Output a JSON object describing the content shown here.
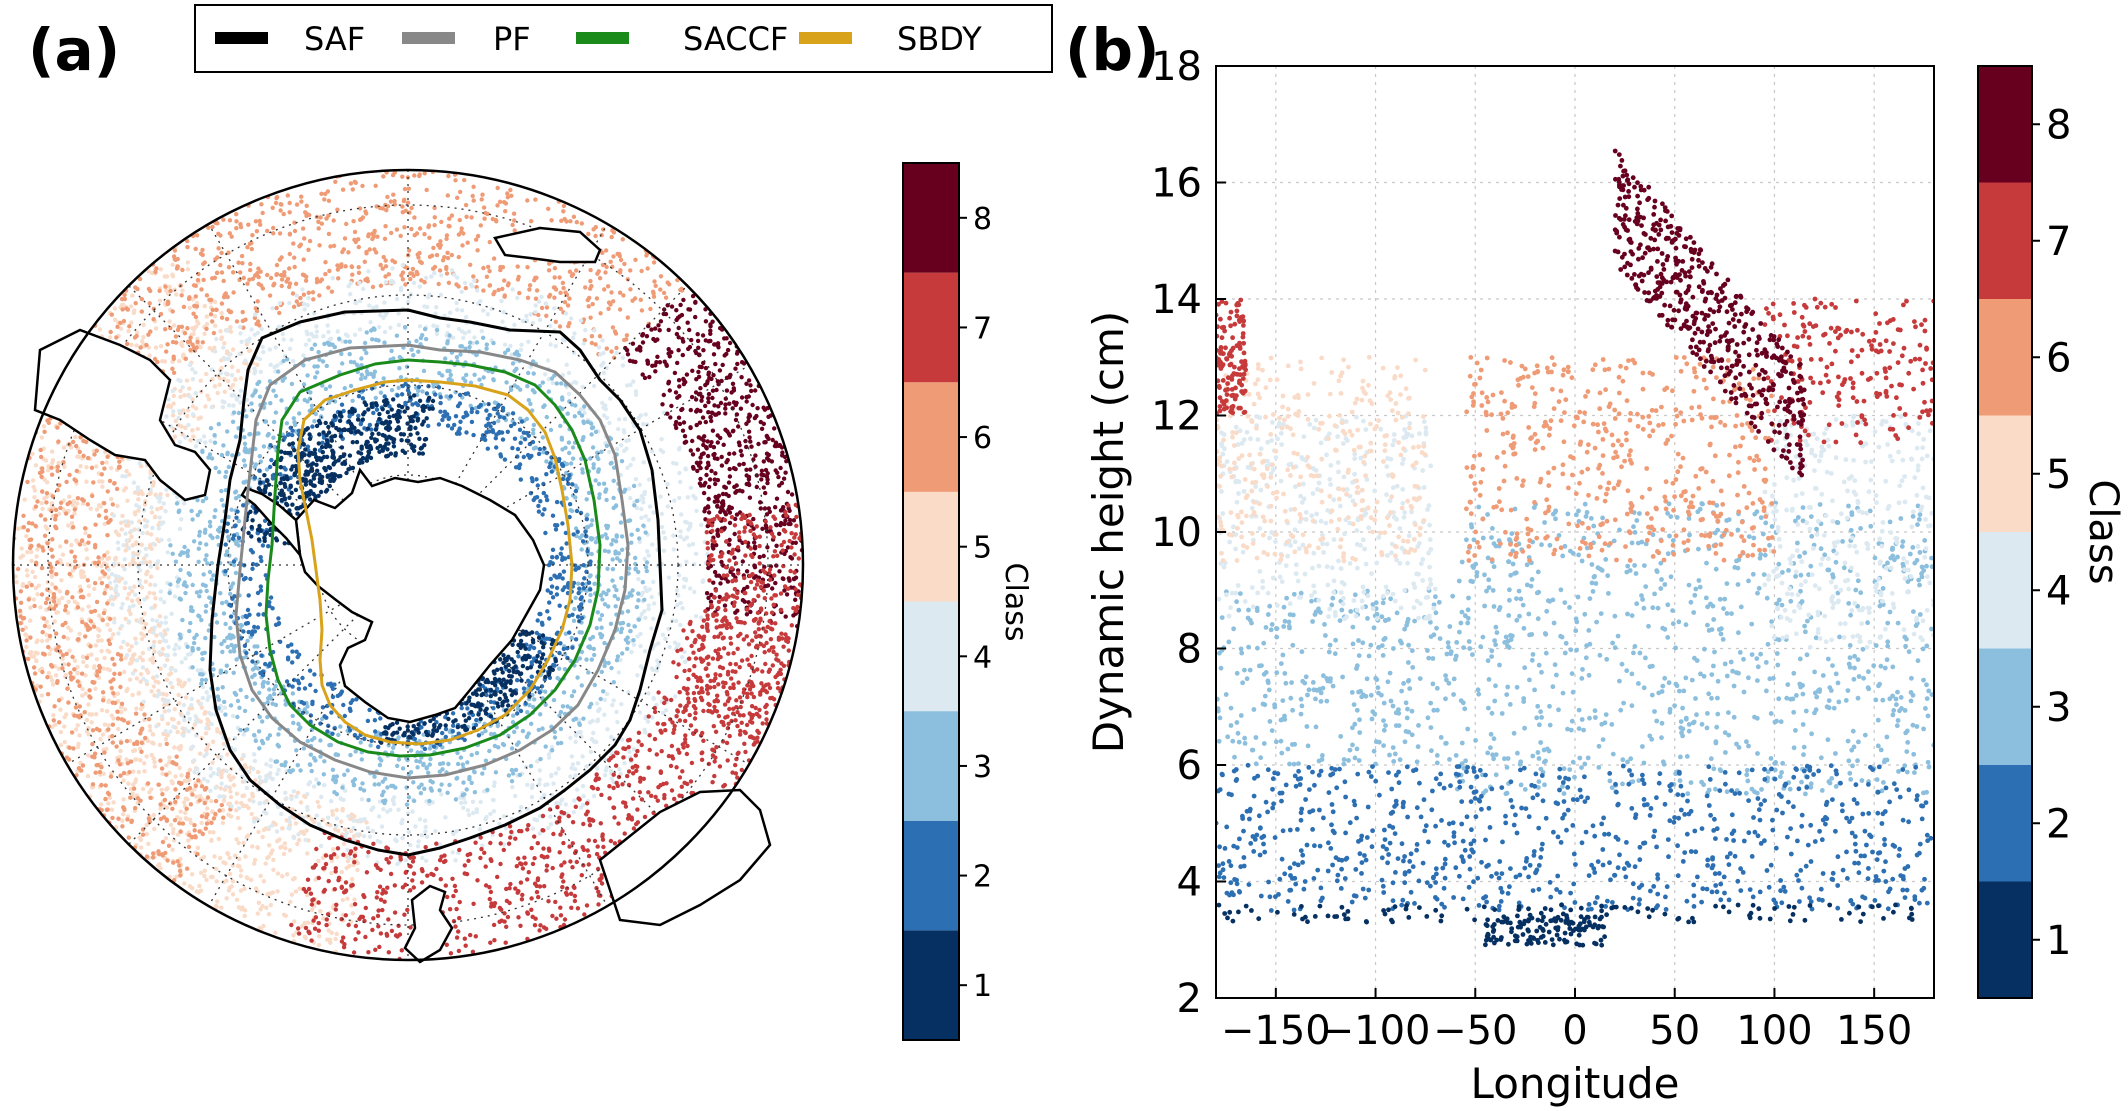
{
  "panel_labels": {
    "a": "(a)",
    "b": "(b)"
  },
  "legend": {
    "entries": [
      {
        "label": "SAF",
        "color": "#000000"
      },
      {
        "label": "PF",
        "color": "#888888"
      },
      {
        "label": "SACCF",
        "color": "#1a8a1a"
      },
      {
        "label": "SBDY",
        "color": "#d9a21b"
      }
    ]
  },
  "class_colors": [
    "#053061",
    "#2c6fb3",
    "#8cbfdd",
    "#dce9f1",
    "#f9dbc8",
    "#ef9b76",
    "#c63a3b",
    "#67001f"
  ],
  "colorbar": {
    "label": "Class",
    "ticks": [
      "1",
      "2",
      "3",
      "4",
      "5",
      "6",
      "7",
      "8"
    ]
  },
  "chart_data": [
    {
      "type": "scatter",
      "title": "",
      "description_panel": "(a)",
      "projection": "south polar stereographic",
      "series": [
        {
          "name": "SAF",
          "kind": "front-line"
        },
        {
          "name": "PF",
          "kind": "front-line"
        },
        {
          "name": "SACCF",
          "kind": "front-line"
        },
        {
          "name": "SBDY",
          "kind": "front-line"
        }
      ],
      "colorbar_label": "Class",
      "classes": [
        1,
        2,
        3,
        4,
        5,
        6,
        7,
        8
      ]
    },
    {
      "type": "scatter",
      "xlabel": "Longitude",
      "ylabel": "Dynamic height (cm)",
      "xlim": [
        -180,
        180
      ],
      "ylim": [
        2,
        18
      ],
      "xticks": [
        "−150",
        "−100",
        "−50",
        "0",
        "50",
        "100",
        "150"
      ],
      "xtick_values": [
        -150,
        -100,
        -50,
        0,
        50,
        100,
        150
      ],
      "yticks": [
        "2",
        "4",
        "6",
        "8",
        "10",
        "12",
        "14",
        "16",
        "18"
      ],
      "ytick_values": [
        2,
        4,
        6,
        8,
        10,
        12,
        14,
        16,
        18
      ],
      "grid": true,
      "colorbar_label": "Class",
      "clusters": [
        {
          "class": 1,
          "x_range": [
            -180,
            180
          ],
          "y_range": [
            3.3,
            3.6
          ],
          "note": "band"
        },
        {
          "class": 1,
          "x_range": [
            -45,
            15
          ],
          "y_range": [
            2.9,
            3.4
          ]
        },
        {
          "class": 2,
          "x_range": [
            -180,
            180
          ],
          "y_range": [
            3.5,
            6.0
          ]
        },
        {
          "class": 3,
          "x_range": [
            -180,
            -60
          ],
          "y_range": [
            6.0,
            9.0
          ]
        },
        {
          "class": 3,
          "x_range": [
            -60,
            180
          ],
          "y_range": [
            5.5,
            10.5
          ]
        },
        {
          "class": 4,
          "x_range": [
            -180,
            -70
          ],
          "y_range": [
            8.5,
            12.0
          ]
        },
        {
          "class": 4,
          "x_range": [
            95,
            180
          ],
          "y_range": [
            8.0,
            12.0
          ]
        },
        {
          "class": 5,
          "x_range": [
            -180,
            -75
          ],
          "y_range": [
            9.5,
            13.0
          ]
        },
        {
          "class": 6,
          "x_range": [
            -55,
            25
          ],
          "y_range": [
            9.5,
            13.0
          ]
        },
        {
          "class": 6,
          "x_range": [
            25,
            100
          ],
          "y_range": [
            9.5,
            13.0
          ]
        },
        {
          "class": 7,
          "x_range": [
            -180,
            -165
          ],
          "y_range": [
            12.0,
            14.0
          ]
        },
        {
          "class": 7,
          "x_range": [
            95,
            180
          ],
          "y_range": [
            11.5,
            14.0
          ]
        },
        {
          "class": 8,
          "x_range": [
            20,
            115
          ],
          "y_range": [
            11.5,
            17.5
          ],
          "note": "diagonal band"
        }
      ]
    }
  ]
}
